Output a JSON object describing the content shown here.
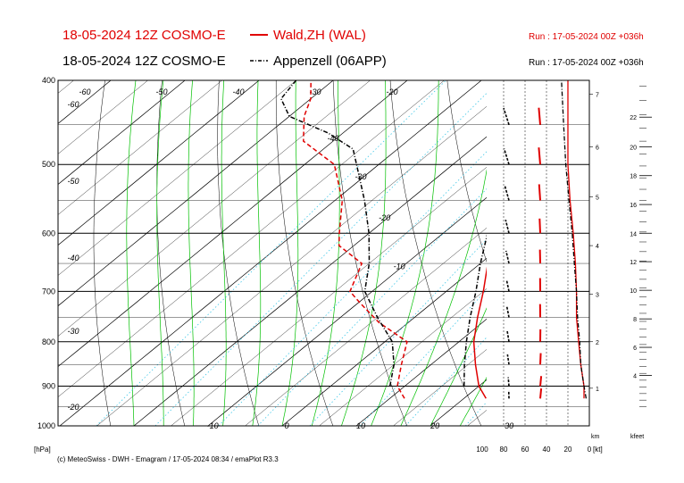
{
  "header": {
    "line1_left": "18-05-2024 12Z COSMO-E",
    "line1_station": "Wald,ZH (WAL)",
    "line1_run": "Run : 17-05-2024 00Z +036h",
    "line2_left": "18-05-2024 12Z COSMO-E",
    "line2_station": "Appenzell (06APP)",
    "line2_run": "Run : 17-05-2024 00Z +036h"
  },
  "footer": {
    "credit": "(c) MeteoSwiss - DWH - Emagram / 17-05-2024  08:34 / emaPlot R3.3",
    "pressure_unit": "[hPa]",
    "km_unit": "km",
    "kfeet_unit": "kfeet",
    "wind_unit": "[kt]"
  },
  "colors": {
    "wald": "#e00000",
    "appenzell": "#000000",
    "dry_adiabat": "#000000",
    "moist_adiabat": "#00c000",
    "mixing_ratio": "#40c8e8",
    "isobar": "#000000"
  },
  "chart_data": {
    "type": "line",
    "title": "",
    "y_axis": "pressure (hPa, log scale)",
    "x_axis": "temperature (°C, skewed)",
    "pressure_range": [
      1000,
      400
    ],
    "isobar_labels": [
      "400",
      "500",
      "600",
      "700",
      "800",
      "900",
      "1000"
    ],
    "isotherm_bottom_labels": [
      "-10",
      "0",
      "10",
      "20",
      "30"
    ],
    "isotherm_inline_labels": [
      "-60",
      "-50",
      "-40",
      "-30",
      "-20",
      "-10",
      "-50",
      "-40",
      "-30",
      "-20",
      "-60",
      "-40",
      "-30",
      "-20",
      "-10",
      "0",
      "10",
      "20"
    ],
    "km_labels": [
      "1",
      "2",
      "3",
      "4",
      "5",
      "6",
      "7"
    ],
    "kfeet_labels": [
      "4",
      "6",
      "8",
      "10",
      "12",
      "14",
      "16",
      "18",
      "20",
      "22"
    ],
    "wind_speed_labels": [
      "100",
      "80",
      "60",
      "40",
      "20",
      "0"
    ],
    "wind_speed_range": [
      0,
      100
    ],
    "series": [
      {
        "name": "Wald,ZH (WAL)",
        "temperature": [
          {
            "p": 930,
            "t": 23
          },
          {
            "p": 900,
            "t": 20
          },
          {
            "p": 850,
            "t": 16
          },
          {
            "p": 800,
            "t": 12
          },
          {
            "p": 750,
            "t": 8.5
          },
          {
            "p": 700,
            "t": 5
          },
          {
            "p": 650,
            "t": 1
          },
          {
            "p": 600,
            "t": -3
          },
          {
            "p": 550,
            "t": -7.5
          },
          {
            "p": 500,
            "t": -12
          },
          {
            "p": 470,
            "t": -16
          },
          {
            "p": 450,
            "t": -18.5
          },
          {
            "p": 420,
            "t": -21
          },
          {
            "p": 400,
            "t": -23
          }
        ],
        "dewpoint": [
          {
            "p": 930,
            "t": 12
          },
          {
            "p": 900,
            "t": 9
          },
          {
            "p": 850,
            "t": 6
          },
          {
            "p": 800,
            "t": 3
          },
          {
            "p": 760,
            "t": -4
          },
          {
            "p": 720,
            "t": -10
          },
          {
            "p": 700,
            "t": -13
          },
          {
            "p": 650,
            "t": -16
          },
          {
            "p": 620,
            "t": -22
          },
          {
            "p": 600,
            "t": -24
          },
          {
            "p": 550,
            "t": -29
          },
          {
            "p": 500,
            "t": -36
          },
          {
            "p": 470,
            "t": -44
          },
          {
            "p": 440,
            "t": -48
          },
          {
            "p": 420,
            "t": -50
          },
          {
            "p": 400,
            "t": -53
          }
        ],
        "wind_speed_kt": [
          {
            "p": 930,
            "kt": 5
          },
          {
            "p": 900,
            "kt": 5
          },
          {
            "p": 850,
            "kt": 8
          },
          {
            "p": 800,
            "kt": 10
          },
          {
            "p": 750,
            "kt": 12
          },
          {
            "p": 700,
            "kt": 12
          },
          {
            "p": 650,
            "kt": 13
          },
          {
            "p": 600,
            "kt": 15
          },
          {
            "p": 550,
            "kt": 18
          },
          {
            "p": 500,
            "kt": 20
          },
          {
            "p": 450,
            "kt": 20
          },
          {
            "p": 400,
            "kt": 20
          }
        ]
      },
      {
        "name": "Appenzell (06APP)",
        "temperature": [
          {
            "p": 900,
            "t": 18
          },
          {
            "p": 850,
            "t": 14.5
          },
          {
            "p": 800,
            "t": 11
          },
          {
            "p": 750,
            "t": 7.5
          },
          {
            "p": 700,
            "t": 4
          },
          {
            "p": 650,
            "t": 0
          },
          {
            "p": 600,
            "t": -4
          },
          {
            "p": 550,
            "t": -8.5
          },
          {
            "p": 500,
            "t": -13
          },
          {
            "p": 470,
            "t": -16.5
          },
          {
            "p": 450,
            "t": -19
          },
          {
            "p": 420,
            "t": -21.5
          },
          {
            "p": 400,
            "t": -24
          }
        ],
        "dewpoint": [
          {
            "p": 900,
            "t": 8
          },
          {
            "p": 850,
            "t": 5
          },
          {
            "p": 800,
            "t": 1
          },
          {
            "p": 750,
            "t": -5
          },
          {
            "p": 700,
            "t": -11
          },
          {
            "p": 650,
            "t": -15
          },
          {
            "p": 600,
            "t": -20
          },
          {
            "p": 550,
            "t": -26
          },
          {
            "p": 500,
            "t": -33
          },
          {
            "p": 480,
            "t": -36
          },
          {
            "p": 460,
            "t": -42
          },
          {
            "p": 440,
            "t": -50
          },
          {
            "p": 420,
            "t": -54
          },
          {
            "p": 400,
            "t": -55
          }
        ],
        "wind_speed_kt": [
          {
            "p": 930,
            "kt": 3
          },
          {
            "p": 900,
            "kt": 5
          },
          {
            "p": 850,
            "kt": 8
          },
          {
            "p": 800,
            "kt": 9
          },
          {
            "p": 750,
            "kt": 11
          },
          {
            "p": 700,
            "kt": 12
          },
          {
            "p": 650,
            "kt": 14
          },
          {
            "p": 600,
            "kt": 16
          },
          {
            "p": 550,
            "kt": 19
          },
          {
            "p": 500,
            "kt": 22
          },
          {
            "p": 450,
            "kt": 24
          },
          {
            "p": 400,
            "kt": 26
          }
        ]
      }
    ],
    "grid": true
  }
}
